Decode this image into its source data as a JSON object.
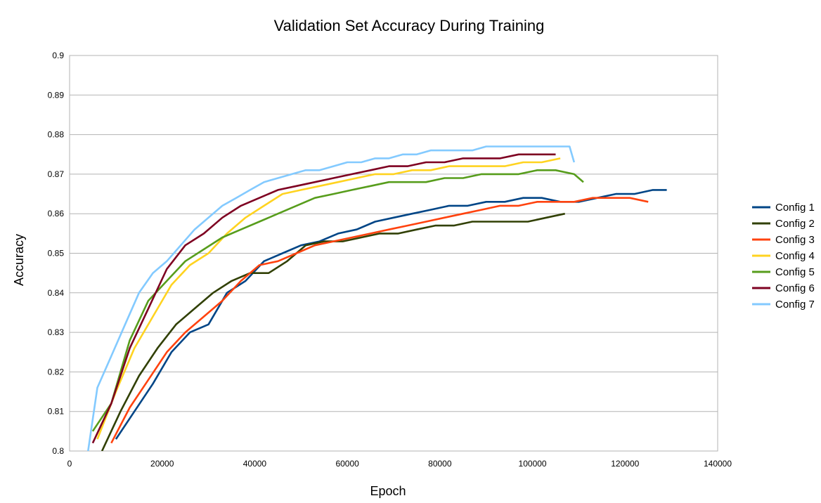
{
  "chart_data": {
    "type": "line",
    "title": "Validation Set Accuracy During Training",
    "xlabel": "Epoch",
    "ylabel": "Accuracy",
    "xlim": [
      0,
      140000
    ],
    "ylim": [
      0.8,
      0.9
    ],
    "xticks": [
      "0",
      "20000",
      "40000",
      "60000",
      "80000",
      "100000",
      "120000",
      "140000"
    ],
    "yticks": [
      "0.8",
      "0.81",
      "0.82",
      "0.83",
      "0.84",
      "0.85",
      "0.86",
      "0.87",
      "0.88",
      "0.89",
      "0.9"
    ],
    "grid": true,
    "legend": "right",
    "series": [
      {
        "name": "Config 1",
        "color": "#004586",
        "x": [
          10000,
          14000,
          18000,
          22000,
          26000,
          30000,
          34000,
          38000,
          42000,
          46000,
          50000,
          54000,
          58000,
          62000,
          66000,
          70000,
          74000,
          78000,
          82000,
          86000,
          90000,
          94000,
          98000,
          102000,
          106000,
          110000,
          114000,
          118000,
          122000,
          126000,
          129000
        ],
        "y": [
          0.803,
          0.81,
          0.817,
          0.825,
          0.83,
          0.832,
          0.84,
          0.843,
          0.848,
          0.85,
          0.852,
          0.853,
          0.855,
          0.856,
          0.858,
          0.859,
          0.86,
          0.861,
          0.862,
          0.862,
          0.863,
          0.863,
          0.864,
          0.864,
          0.863,
          0.863,
          0.864,
          0.865,
          0.865,
          0.866,
          0.866
        ]
      },
      {
        "name": "Config 2",
        "color": "#314004",
        "x": [
          7000,
          11000,
          15000,
          19000,
          23000,
          27000,
          31000,
          35000,
          39000,
          43000,
          47000,
          51000,
          55000,
          59000,
          63000,
          67000,
          71000,
          75000,
          79000,
          83000,
          87000,
          91000,
          95000,
          99000,
          103000,
          107000
        ],
        "y": [
          0.8,
          0.81,
          0.819,
          0.826,
          0.832,
          0.836,
          0.84,
          0.843,
          0.845,
          0.845,
          0.848,
          0.852,
          0.853,
          0.853,
          0.854,
          0.855,
          0.855,
          0.856,
          0.857,
          0.857,
          0.858,
          0.858,
          0.858,
          0.858,
          0.859,
          0.86
        ]
      },
      {
        "name": "Config 3",
        "color": "#ff420e",
        "x": [
          9000,
          13000,
          17000,
          21000,
          25000,
          29000,
          33000,
          37000,
          41000,
          45000,
          49000,
          53000,
          57000,
          61000,
          65000,
          69000,
          73000,
          77000,
          81000,
          85000,
          89000,
          93000,
          97000,
          101000,
          105000,
          109000,
          113000,
          117000,
          121000,
          125000
        ],
        "y": [
          0.802,
          0.811,
          0.818,
          0.825,
          0.83,
          0.834,
          0.838,
          0.843,
          0.847,
          0.848,
          0.85,
          0.852,
          0.853,
          0.854,
          0.855,
          0.856,
          0.857,
          0.858,
          0.859,
          0.86,
          0.861,
          0.862,
          0.862,
          0.863,
          0.863,
          0.863,
          0.864,
          0.864,
          0.864,
          0.863
        ]
      },
      {
        "name": "Config 4",
        "color": "#ffd320",
        "x": [
          6000,
          10000,
          14000,
          18000,
          22000,
          26000,
          30000,
          34000,
          38000,
          42000,
          46000,
          50000,
          54000,
          58000,
          62000,
          66000,
          70000,
          74000,
          78000,
          82000,
          86000,
          90000,
          94000,
          98000,
          102000,
          106000
        ],
        "y": [
          0.803,
          0.815,
          0.826,
          0.834,
          0.842,
          0.847,
          0.85,
          0.855,
          0.859,
          0.862,
          0.865,
          0.866,
          0.867,
          0.868,
          0.869,
          0.87,
          0.87,
          0.871,
          0.871,
          0.872,
          0.872,
          0.872,
          0.872,
          0.873,
          0.873,
          0.874
        ]
      },
      {
        "name": "Config 5",
        "color": "#579d1c",
        "x": [
          5000,
          9000,
          13000,
          17000,
          21000,
          25000,
          29000,
          33000,
          37000,
          41000,
          45000,
          49000,
          53000,
          57000,
          61000,
          65000,
          69000,
          73000,
          77000,
          81000,
          85000,
          89000,
          93000,
          97000,
          101000,
          105000,
          109000,
          111000
        ],
        "y": [
          0.805,
          0.812,
          0.828,
          0.838,
          0.843,
          0.848,
          0.851,
          0.854,
          0.856,
          0.858,
          0.86,
          0.862,
          0.864,
          0.865,
          0.866,
          0.867,
          0.868,
          0.868,
          0.868,
          0.869,
          0.869,
          0.87,
          0.87,
          0.87,
          0.871,
          0.871,
          0.87,
          0.868
        ]
      },
      {
        "name": "Config 6",
        "color": "#7e0021",
        "x": [
          5000,
          9000,
          13000,
          17000,
          21000,
          25000,
          29000,
          33000,
          37000,
          41000,
          45000,
          49000,
          53000,
          57000,
          61000,
          65000,
          69000,
          73000,
          77000,
          81000,
          85000,
          89000,
          93000,
          97000,
          101000,
          105000
        ],
        "y": [
          0.802,
          0.812,
          0.826,
          0.836,
          0.846,
          0.852,
          0.855,
          0.859,
          0.862,
          0.864,
          0.866,
          0.867,
          0.868,
          0.869,
          0.87,
          0.871,
          0.872,
          0.872,
          0.873,
          0.873,
          0.874,
          0.874,
          0.874,
          0.875,
          0.875,
          0.875
        ]
      },
      {
        "name": "Config 7",
        "color": "#83caff",
        "x": [
          4000,
          6000,
          9000,
          12000,
          15000,
          18000,
          21000,
          24000,
          27000,
          30000,
          33000,
          36000,
          39000,
          42000,
          45000,
          48000,
          51000,
          54000,
          57000,
          60000,
          63000,
          66000,
          69000,
          72000,
          75000,
          78000,
          81000,
          84000,
          87000,
          90000,
          93000,
          96000,
          99000,
          102000,
          105000,
          108000,
          109000
        ],
        "y": [
          0.8,
          0.816,
          0.824,
          0.832,
          0.84,
          0.845,
          0.848,
          0.852,
          0.856,
          0.859,
          0.862,
          0.864,
          0.866,
          0.868,
          0.869,
          0.87,
          0.871,
          0.871,
          0.872,
          0.873,
          0.873,
          0.874,
          0.874,
          0.875,
          0.875,
          0.876,
          0.876,
          0.876,
          0.876,
          0.877,
          0.877,
          0.877,
          0.877,
          0.877,
          0.877,
          0.877,
          0.873
        ]
      }
    ]
  }
}
